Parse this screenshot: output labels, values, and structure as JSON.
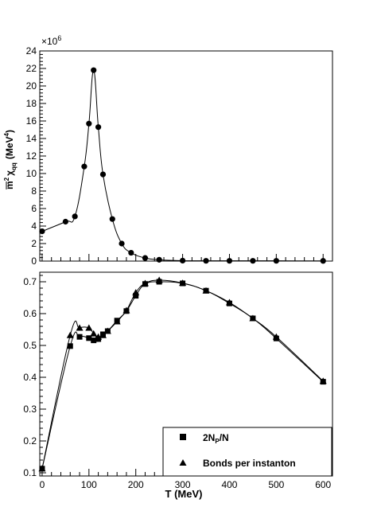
{
  "chart_data": [
    {
      "type": "line",
      "panel": "top",
      "ylabel": "m̄²χqq (MeV⁴)",
      "ylabel_parts": {
        "base": "m",
        "sup": "2",
        "chi": "χ",
        "sub": "qq",
        "unit": "(MeV",
        "unit_sup": "4",
        "unit_close": ")"
      },
      "yscale_label": "×10",
      "yscale_exp": "6",
      "xlim": [
        -5,
        620
      ],
      "ylim": [
        0,
        24
      ],
      "yticks": [
        0,
        2,
        4,
        6,
        8,
        10,
        12,
        14,
        16,
        18,
        20,
        22,
        24
      ],
      "series": [
        {
          "marker": "circle",
          "x": [
            0,
            50,
            70,
            90,
            100,
            110,
            120,
            130,
            150,
            170,
            190,
            220,
            250,
            300,
            350,
            400,
            450,
            500,
            600
          ],
          "y": [
            3.4,
            4.5,
            5.1,
            10.8,
            15.7,
            21.8,
            15.3,
            9.9,
            4.8,
            2.0,
            0.95,
            0.35,
            0.15,
            0.05,
            0.03,
            0.03,
            0.03,
            0.03,
            0.02
          ]
        }
      ]
    },
    {
      "type": "line",
      "panel": "bottom",
      "xlabel": "T (MeV)",
      "xlim": [
        -5,
        620
      ],
      "ylim": [
        0.09,
        0.73
      ],
      "xticks": [
        0,
        100,
        200,
        300,
        400,
        500,
        600
      ],
      "yticks": [
        0.1,
        0.2,
        0.3,
        0.4,
        0.5,
        0.6,
        0.7
      ],
      "legend": {
        "placement": "bottom-right",
        "entries": [
          {
            "marker": "square",
            "label_main": "2N",
            "label_sub": "P",
            "label_tail": "/N"
          },
          {
            "marker": "triangle",
            "label_main": "Bonds per instanton",
            "label_sub": "",
            "label_tail": ""
          }
        ]
      },
      "series": [
        {
          "marker": "square",
          "x": [
            0,
            60,
            80,
            100,
            110,
            120,
            130,
            140,
            160,
            180,
            200,
            220,
            250,
            300,
            350,
            400,
            450,
            500,
            600
          ],
          "y": [
            0.113,
            0.498,
            0.527,
            0.523,
            0.516,
            0.52,
            0.535,
            0.545,
            0.578,
            0.608,
            0.656,
            0.693,
            0.7,
            0.695,
            0.672,
            0.632,
            0.585,
            0.522,
            0.386
          ]
        },
        {
          "marker": "triangle",
          "x": [
            0,
            60,
            80,
            100,
            110,
            120,
            130,
            140,
            160,
            180,
            200,
            220,
            250,
            300,
            350,
            400,
            450,
            500,
            600
          ],
          "y": [
            0.113,
            0.532,
            0.555,
            0.555,
            0.537,
            0.527,
            0.532,
            0.545,
            0.575,
            0.61,
            0.666,
            0.695,
            0.705,
            0.696,
            0.672,
            0.635,
            0.585,
            0.527,
            0.388
          ]
        }
      ]
    }
  ]
}
